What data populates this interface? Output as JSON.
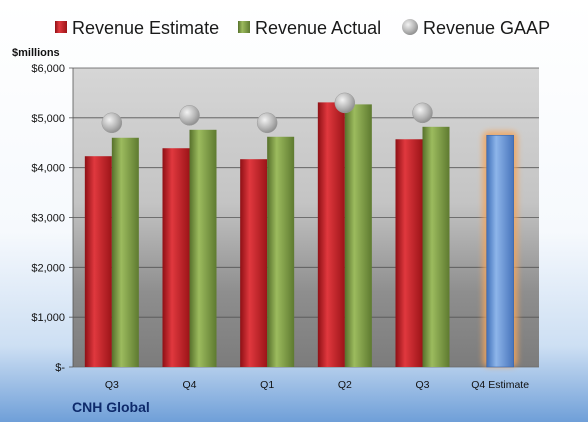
{
  "chart_data": {
    "type": "bar",
    "company": "CNH Global",
    "units_label": "$millions",
    "categories": [
      "Q3",
      "Q4",
      "Q1",
      "Q2",
      "Q3",
      "Q4 Estimate"
    ],
    "series": [
      {
        "name": "Revenue Estimate",
        "type": "bar",
        "color": "#c0272d",
        "values": [
          4230,
          4390,
          4170,
          5310,
          4570,
          null
        ]
      },
      {
        "name": "Revenue Actual",
        "type": "bar",
        "color": "#7c9a45",
        "values": [
          4600,
          4760,
          4620,
          5270,
          4820,
          4650
        ]
      },
      {
        "name": "Revenue GAAP",
        "type": "marker",
        "color": "#b8b8b8",
        "values": [
          4900,
          5050,
          4900,
          5300,
          5100,
          null
        ]
      }
    ],
    "estimate_bar_color": "#5b8fd6",
    "ylim": [
      0,
      6000
    ],
    "yticks": [
      0,
      1000,
      2000,
      3000,
      4000,
      5000,
      6000
    ],
    "ytick_labels": [
      "$-",
      "$1,000",
      "$2,000",
      "$3,000",
      "$4,000",
      "$5,000",
      "$6,000"
    ],
    "grid": true,
    "legend_position": "top"
  }
}
